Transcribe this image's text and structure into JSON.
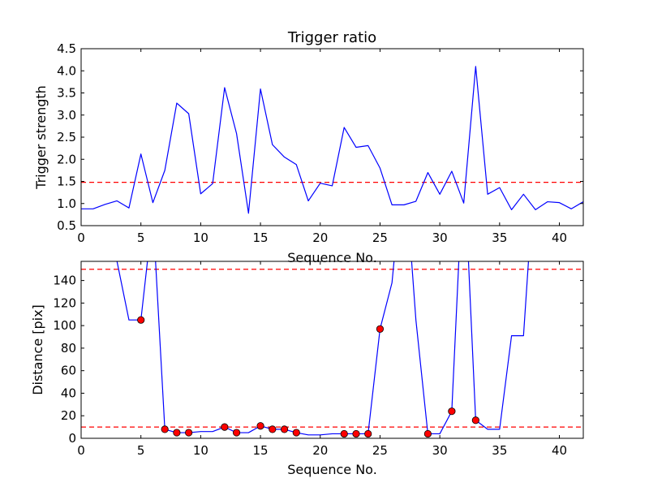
{
  "chart_data": [
    {
      "type": "line",
      "title": "Trigger ratio",
      "xlabel": "Sequence No.",
      "ylabel": "Trigger strength",
      "xlim": [
        0,
        42
      ],
      "ylim": [
        0.5,
        4.5
      ],
      "xticks": [
        0,
        5,
        10,
        15,
        20,
        25,
        30,
        35,
        40
      ],
      "yticks": [
        0.5,
        1.0,
        1.5,
        2.0,
        2.5,
        3.0,
        3.5,
        4.0,
        4.5
      ],
      "ytick_labels": [
        "0.5",
        "1.0",
        "1.5",
        "2.0",
        "2.5",
        "3.0",
        "3.5",
        "4.0",
        "4.5"
      ],
      "series": [
        {
          "color": "#0000ff",
          "style": "solid",
          "x": [
            0,
            1,
            2,
            3,
            4,
            5,
            6,
            7,
            8,
            9,
            10,
            11,
            12,
            13,
            14,
            15,
            16,
            17,
            18,
            19,
            20,
            21,
            22,
            23,
            24,
            25,
            26,
            27,
            28,
            29,
            30,
            31,
            32,
            33,
            34,
            35,
            36,
            37,
            38,
            39,
            40,
            41,
            42
          ],
          "y": [
            0.88,
            0.88,
            0.98,
            1.06,
            0.9,
            2.12,
            1.02,
            1.75,
            3.27,
            3.03,
            1.22,
            1.45,
            3.62,
            2.58,
            0.78,
            3.59,
            2.33,
            2.05,
            1.88,
            1.06,
            1.46,
            1.4,
            2.72,
            2.27,
            2.31,
            1.8,
            0.97,
            0.97,
            1.05,
            1.7,
            1.21,
            1.73,
            1.01,
            4.1,
            1.21,
            1.36,
            0.86,
            1.21,
            0.86,
            1.04,
            1.02,
            0.88,
            1.04
          ]
        }
      ],
      "reference_lines": [
        {
          "y": 1.48,
          "color": "#ff0000",
          "style": "dashed"
        }
      ],
      "grid": false
    },
    {
      "type": "line",
      "title": "",
      "xlabel": "Sequence No.",
      "ylabel": "Distance [pix]",
      "xlim": [
        0,
        42
      ],
      "ylim": [
        0,
        157
      ],
      "xticks": [
        0,
        5,
        10,
        15,
        20,
        25,
        30,
        35,
        40
      ],
      "yticks": [
        0,
        20,
        40,
        60,
        80,
        100,
        120,
        140
      ],
      "ytick_labels": [
        "0",
        "20",
        "40",
        "60",
        "80",
        "100",
        "120",
        "140"
      ],
      "series": [
        {
          "color": "#0000ff",
          "style": "solid",
          "x": [
            3,
            4,
            5,
            6,
            7,
            8,
            9,
            10,
            11,
            12,
            13,
            14,
            15,
            16,
            17,
            18,
            19,
            20,
            21,
            22,
            23,
            24,
            25,
            26,
            27,
            28,
            29,
            30,
            31,
            32,
            33,
            34,
            35,
            36,
            37,
            38
          ],
          "y": [
            157,
            105,
            105,
            200,
            8,
            5,
            5,
            6,
            6,
            10,
            5,
            5,
            11,
            8,
            8,
            5,
            3,
            3,
            4,
            4,
            4,
            4,
            97,
            138,
            250,
            105,
            4,
            4,
            24,
            250,
            16,
            8,
            8,
            91,
            91,
            250
          ]
        }
      ],
      "markers": {
        "color": "#ff0000",
        "edge": "#000000",
        "x": [
          5,
          7,
          8,
          9,
          12,
          13,
          15,
          16,
          17,
          18,
          22,
          23,
          24,
          25,
          29,
          31,
          33
        ],
        "y": [
          105,
          8,
          5,
          5,
          10,
          5,
          11,
          8,
          8,
          5,
          4,
          4,
          4,
          97,
          4,
          24,
          16
        ]
      },
      "reference_lines": [
        {
          "y": 150,
          "color": "#ff0000",
          "style": "dashed"
        },
        {
          "y": 10,
          "color": "#ff0000",
          "style": "dashed"
        }
      ],
      "grid": false
    }
  ]
}
